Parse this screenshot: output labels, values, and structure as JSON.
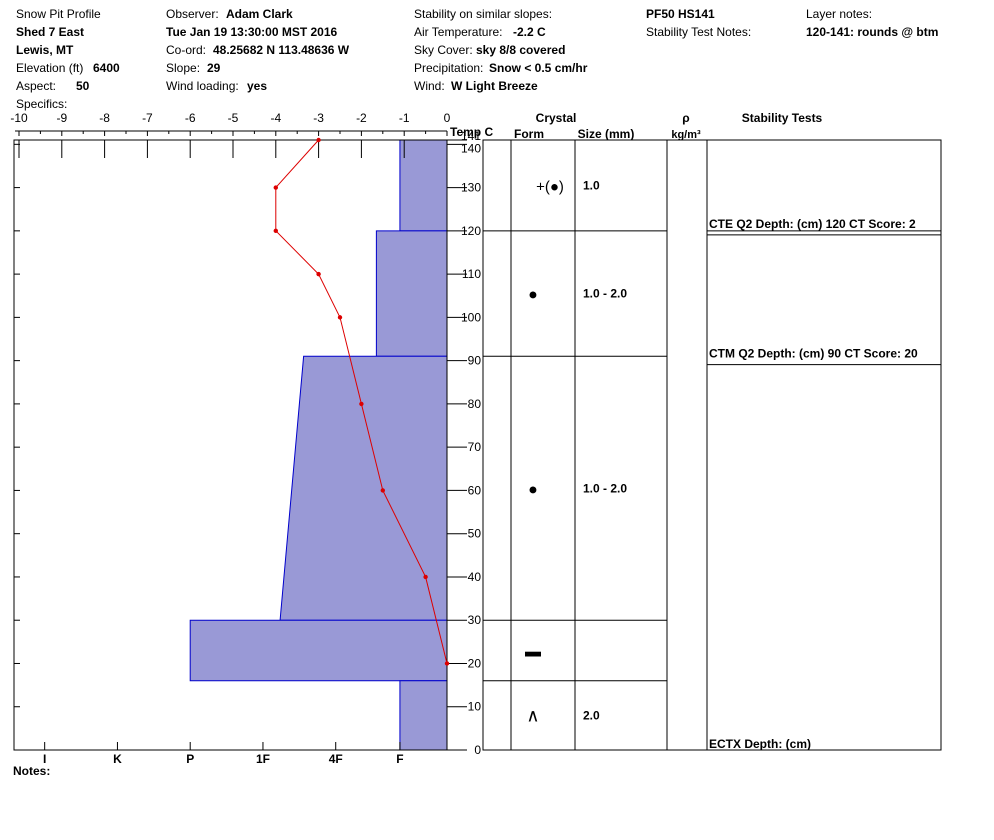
{
  "header": {
    "profile_label": "Snow Pit Profile",
    "site": "Shed 7 East",
    "location": "Lewis, MT",
    "elevation_label": "Elevation (ft)",
    "elevation": "6400",
    "aspect_label": "Aspect:",
    "aspect": "50",
    "specifics_label": "Specifics:",
    "observer_label": "Observer:",
    "observer": "Adam Clark",
    "datetime": "Tue Jan 19 13:30:00 MST 2016",
    "coord_label": "Co-ord:",
    "coord": "48.25682 N 113.48636 W",
    "slope_label": "Slope:",
    "slope": "29",
    "wind_loading_label": "Wind loading:",
    "wind_loading": "yes",
    "stability_similar_label": "Stability on similar slopes:",
    "air_temp_label": "Air Temperature:",
    "air_temp": "-2.2 C",
    "sky_label": "Sky Cover:",
    "sky": "sky 8/8 covered",
    "precip_label": "Precipitation:",
    "precip": "Snow < 0.5 cm/hr",
    "wind_label": "Wind:",
    "wind": "W Light Breeze",
    "pf_hs": "PF50 HS141",
    "stability_notes_label": "Stability Test Notes:",
    "layer_notes_label": "Layer notes:",
    "layer_notes": "120-141: rounds @ btm"
  },
  "notes_label": "Notes:",
  "colors": {
    "hardness_fill": "#9999d6",
    "hardness_edge": "#0000cc",
    "temp_line": "#dd0000"
  },
  "columns": {
    "temp_axis_title": "Temp C",
    "crystal": "Crystal",
    "form": "Form",
    "size": "Size (mm)",
    "rho": "ρ",
    "density_unit": "kg/m³",
    "stability_tests": "Stability Tests"
  },
  "chart_data": {
    "type": "line",
    "temp_axis": {
      "min": -10,
      "max": 0,
      "ticks": [
        "-10",
        "-9",
        "-8",
        "-7",
        "-6",
        "-5",
        "-4",
        "-3",
        "-2",
        "-1",
        "0"
      ]
    },
    "height_axis": {
      "min": 0,
      "max": 141,
      "ticks": [
        0,
        10,
        20,
        30,
        40,
        50,
        60,
        70,
        80,
        90,
        100,
        110,
        120,
        130,
        140,
        141
      ]
    },
    "hardness_axis": {
      "labels": [
        "I",
        "K",
        "P",
        "1F",
        "4F",
        "F"
      ],
      "scale": [
        [
          "I",
          -9.4
        ],
        [
          "K",
          -7.7
        ],
        [
          "P",
          -6
        ],
        [
          "1F",
          -4.3
        ],
        [
          "4F",
          -2.6
        ],
        [
          "F",
          -1.1
        ]
      ]
    },
    "temperature_profile": [
      {
        "height": 141,
        "temp": -3.0
      },
      {
        "height": 130,
        "temp": -4.0
      },
      {
        "height": 120,
        "temp": -4.0
      },
      {
        "height": 110,
        "temp": -3.0
      },
      {
        "height": 100,
        "temp": -2.5
      },
      {
        "height": 80,
        "temp": -2.0
      },
      {
        "height": 60,
        "temp": -1.5
      },
      {
        "height": 40,
        "temp": -0.5
      },
      {
        "height": 20,
        "temp": 0.0
      }
    ],
    "hardness_layers": [
      {
        "bottom": 120,
        "top": 141,
        "hardness": "F"
      },
      {
        "bottom": 91,
        "top": 120,
        "hardness": "F+"
      },
      {
        "bottom": 30,
        "top": 91,
        "hardness": "4F"
      },
      {
        "bottom": 16,
        "top": 30,
        "hardness": "P"
      },
      {
        "bottom": 0,
        "top": 16,
        "hardness": "F"
      }
    ],
    "layers": [
      {
        "bottom": 120,
        "top": 141,
        "form_symbol": "+(●)",
        "form": "decomposing to rounds",
        "size": "1.0"
      },
      {
        "bottom": 91,
        "top": 120,
        "form_symbol": "●",
        "form": "rounds",
        "size": "1.0 - 2.0"
      },
      {
        "bottom": 30,
        "top": 91,
        "form_symbol": "●",
        "form": "rounds",
        "size": "1.0 - 2.0"
      },
      {
        "bottom": 16,
        "top": 30,
        "form_symbol": "▬",
        "form": "ice layer",
        "size": ""
      },
      {
        "bottom": 0,
        "top": 16,
        "form_symbol": "∧",
        "form": "depth hoar",
        "size": "2.0"
      }
    ],
    "stability_tests": [
      {
        "text": "CTE Q2 Depth: (cm) 120 CT Score: 2",
        "depth": 120
      },
      {
        "text": "CTM Q2 Depth: (cm) 90 CT Score: 20",
        "depth": 90
      },
      {
        "text": "ECTX   Depth: (cm)",
        "depth": 0
      }
    ]
  }
}
